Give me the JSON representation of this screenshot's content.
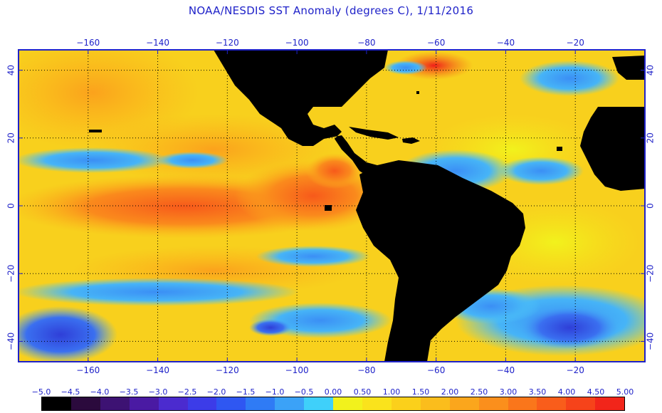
{
  "title": "NOAA/NESDIS SST Anomaly (degrees C), 1/11/2016",
  "map": {
    "lon_range": [
      -180,
      0
    ],
    "lat_range": [
      -46,
      46
    ],
    "lon_ticks": [
      {
        "value": -160,
        "label": "−160"
      },
      {
        "value": -140,
        "label": "−140"
      },
      {
        "value": -120,
        "label": "−120"
      },
      {
        "value": -100,
        "label": "−100"
      },
      {
        "value": -80,
        "label": "−80"
      },
      {
        "value": -60,
        "label": "−60"
      },
      {
        "value": -40,
        "label": "−40"
      },
      {
        "value": -20,
        "label": "−20"
      }
    ],
    "lat_ticks": [
      {
        "value": 40,
        "label": "40"
      },
      {
        "value": 20,
        "label": "20"
      },
      {
        "value": 0,
        "label": "0"
      },
      {
        "value": -20,
        "label": "−20"
      },
      {
        "value": -40,
        "label": "−40"
      }
    ],
    "gridlines": "dotted",
    "land_color": "#000000",
    "frame_color": "#1f22c9",
    "ocean_base_color": "#f7d21c"
  },
  "colorbar": {
    "labels": [
      "−5.0",
      "−4.5",
      "−4.0",
      "−3.5",
      "−3.0",
      "−2.5",
      "−2.0",
      "−1.5",
      "−1.0",
      "−0.5",
      "0.00",
      "0.50",
      "1.00",
      "1.50",
      "2.00",
      "2.50",
      "3.00",
      "3.50",
      "4.00",
      "4.50",
      "5.00"
    ],
    "colors": [
      "#000000",
      "#2b0a3d",
      "#3d1273",
      "#4a1aa3",
      "#4b2bcf",
      "#3c3ce8",
      "#2f57f2",
      "#2f7bf5",
      "#3ba2f7",
      "#3fd0fa",
      "#f2f21c",
      "#fae31c",
      "#fbd01b",
      "#fbbd1c",
      "#fba61c",
      "#fb8f1c",
      "#fa761b",
      "#f95d1b",
      "#f6431a",
      "#f2251a"
    ]
  }
}
